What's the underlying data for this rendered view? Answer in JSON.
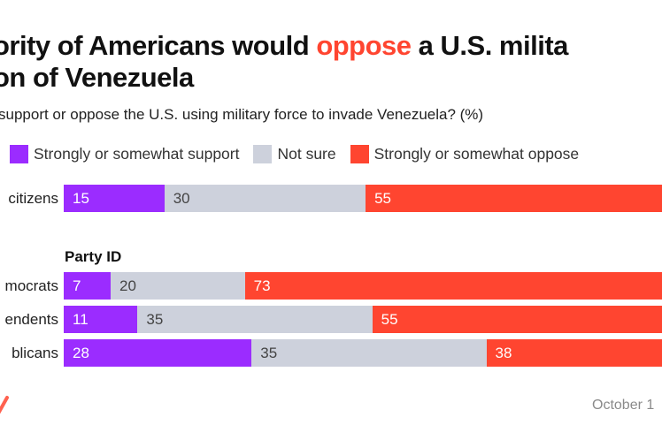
{
  "title": {
    "before": "ority of Americans would ",
    "highlight": "oppose",
    "after": " a U.S. milita",
    "line2": "on of Venezuela"
  },
  "subtitle": "support or oppose the U.S. using military force to invade Venezuela? (%)",
  "colors": {
    "support": "#9b2cff",
    "not_sure": "#cdd1dc",
    "oppose": "#ff4530",
    "highlight": "#ff4530"
  },
  "legend": [
    {
      "label": "Strongly or somewhat support",
      "key": "support"
    },
    {
      "label": "Not sure",
      "key": "not_sure"
    },
    {
      "label": "Strongly or somewhat oppose",
      "key": "oppose"
    }
  ],
  "group_heading": "Party ID",
  "footer": {
    "date": "October 1",
    "logo_icon": "brand-logo-icon"
  },
  "chart_data": {
    "type": "bar",
    "orientation": "horizontal",
    "stacked": true,
    "title": "ority of Americans would oppose a U.S. military invasion of Venezuela",
    "subtitle": "support or oppose the U.S. using military force to invade Venezuela? (%)",
    "categories": [
      "citizens",
      "mocrats",
      "endents",
      "blicans"
    ],
    "groups": [
      {
        "heading": "",
        "categories": [
          "citizens"
        ]
      },
      {
        "heading": "Party ID",
        "categories": [
          "mocrats",
          "endents",
          "blicans"
        ]
      }
    ],
    "series": [
      {
        "name": "Strongly or somewhat support",
        "values": [
          15,
          7,
          11,
          28
        ]
      },
      {
        "name": "Not sure",
        "values": [
          30,
          20,
          35,
          35
        ]
      },
      {
        "name": "Strongly or somewhat oppose",
        "values": [
          55,
          73,
          55,
          38
        ]
      }
    ],
    "xlim": [
      0,
      100
    ],
    "legend_position": "top",
    "grid": false
  }
}
